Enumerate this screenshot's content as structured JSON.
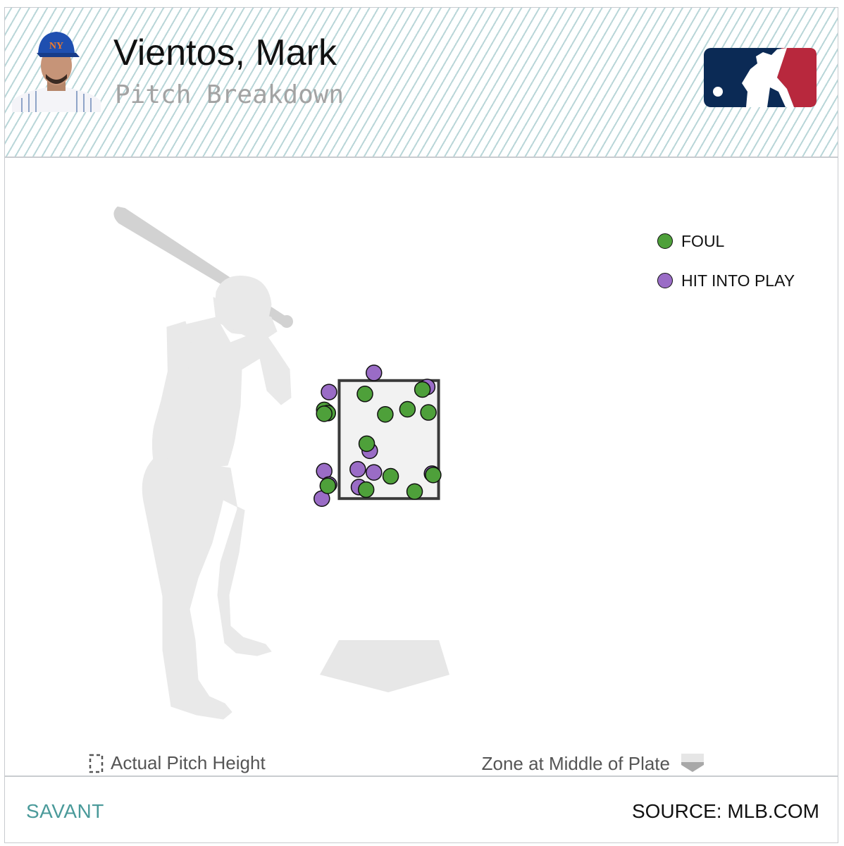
{
  "header": {
    "player_name": "Vientos, Mark",
    "subtitle": "Pitch Breakdown"
  },
  "colors": {
    "foul": "#4ea03a",
    "hit_into_play": "#9a6cc6",
    "silhouette": "#e9e9e9",
    "strike_zone_border": "#3a3a3a",
    "mlb_blue": "#0b2a55",
    "mlb_red": "#b8283d",
    "brand_teal": "#4a9a9a"
  },
  "icons": {
    "player_photo": "player-headshot-icon",
    "logo": "mlb-logo-icon",
    "actual_height": "dashed-box-icon",
    "zone_plate": "home-plate-icon"
  },
  "chart_data": {
    "type": "scatter",
    "title": "",
    "xlabel": "",
    "ylabel": "",
    "grid": false,
    "legend_position": "top-right",
    "xlim": [
      -2.5,
      2.5
    ],
    "ylim": [
      0,
      5
    ],
    "strike_zone": {
      "x": [
        -0.83,
        0.83
      ],
      "y": [
        1.6,
        3.45
      ]
    },
    "series": [
      {
        "name": "FOUL",
        "color": "#4ea03a",
        "points": [
          [
            -0.4,
            3.24
          ],
          [
            -1.08,
            2.99
          ],
          [
            -1.02,
            2.94
          ],
          [
            -1.08,
            2.93
          ],
          [
            -0.06,
            2.92
          ],
          [
            0.31,
            3.0
          ],
          [
            0.66,
            2.95
          ],
          [
            0.56,
            3.31
          ],
          [
            -0.37,
            2.46
          ],
          [
            0.03,
            1.95
          ],
          [
            0.74,
            1.97
          ],
          [
            -0.38,
            1.74
          ],
          [
            0.43,
            1.71
          ],
          [
            -1.02,
            1.8
          ]
        ]
      },
      {
        "name": "HIT INTO PLAY",
        "color": "#9a6cc6",
        "points": [
          [
            -0.25,
            3.57
          ],
          [
            0.64,
            3.35
          ],
          [
            -1.0,
            3.27
          ],
          [
            -1.04,
            2.96
          ],
          [
            -0.32,
            2.35
          ],
          [
            -0.52,
            2.06
          ],
          [
            -0.25,
            2.01
          ],
          [
            -0.5,
            1.78
          ],
          [
            0.72,
            1.99
          ],
          [
            -1.08,
            2.03
          ],
          [
            -1.0,
            1.82
          ],
          [
            -1.12,
            1.6
          ]
        ]
      }
    ]
  },
  "legend": {
    "foul": "FOUL",
    "hit_into_play": "HIT INTO PLAY"
  },
  "notes": {
    "actual_pitch_height": "Actual Pitch Height",
    "zone_middle_plate": "Zone at Middle of Plate"
  },
  "footer": {
    "brand": "SAVANT",
    "source": "SOURCE: MLB.COM"
  }
}
